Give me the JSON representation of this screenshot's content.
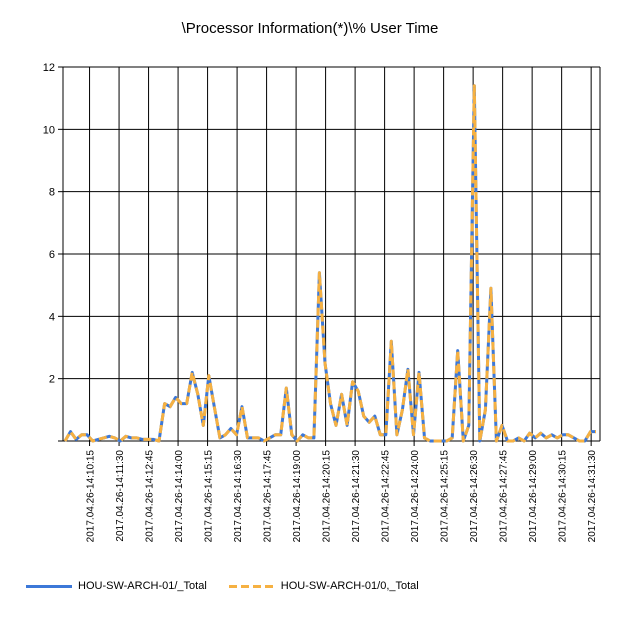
{
  "chart_data": {
    "type": "line",
    "title": "\\Processor Information(*)\\% User Time",
    "xlabel": "",
    "ylabel": "",
    "ylim": [
      0,
      12
    ],
    "y_ticks": [
      "",
      "2",
      "4",
      "6",
      "8",
      "10",
      "12"
    ],
    "x_tick_labels": [
      "2017.04.26-14:10:15",
      "2017.04.26-14:11:30",
      "2017.04.26-14:12:45",
      "2017.04.26-14:14:00",
      "2017.04.26-14:15:15",
      "2017.04.26-14:16:30",
      "2017.04.26-14:17:45",
      "2017.04.26-14:19:00",
      "2017.04.26-14:20:15",
      "2017.04.26-14:21:30",
      "2017.04.26-14:22:45",
      "2017.04.26-14:24:00",
      "2017.04.26-14:25:15",
      "2017.04.26-14:26:30",
      "2017.04.26-14:27:45",
      "2017.04.26-14:29:00",
      "2017.04.26-14:30:15",
      "2017.04.26-14:31:30"
    ],
    "grid": true,
    "legend_position": "bottom-left",
    "series": [
      {
        "name": "HOU-SW-ARCH-01/_Total",
        "color": "#3c78d8",
        "dashed": false,
        "values": [
          0,
          0.3,
          0.05,
          0.2,
          0.2,
          0,
          0.05,
          0.1,
          0.15,
          0.1,
          0,
          0.15,
          0.1,
          0.1,
          0.05,
          0.05,
          0.05,
          0,
          1.2,
          1.1,
          1.4,
          1.2,
          1.2,
          2.2,
          1.5,
          0.5,
          2.1,
          1.1,
          0.1,
          0.2,
          0.4,
          0.2,
          1.1,
          0.1,
          0.1,
          0.1,
          0,
          0.1,
          0.2,
          0.2,
          1.7,
          0.2,
          0,
          0.2,
          0.1,
          0.1,
          5.4,
          2.5,
          1.2,
          0.5,
          1.5,
          0.5,
          1.9,
          1.6,
          0.8,
          0.6,
          0.8,
          0.2,
          0.2,
          3.2,
          0.2,
          1,
          2.3,
          0.2,
          2.2,
          0.1,
          0,
          0,
          0,
          0,
          0.1,
          2.9,
          0,
          0.5,
          11.4,
          0,
          1,
          4.9,
          0,
          0.5,
          0,
          0,
          0.1,
          0,
          0.25,
          0.1,
          0.25,
          0.1,
          0.2,
          0.1,
          0.2,
          0.2,
          0.1,
          0,
          0,
          0.3,
          0.3
        ]
      },
      {
        "name": "HOU-SW-ARCH-01/0,_Total",
        "color": "#f6b142",
        "dashed": true,
        "values": [
          0,
          0.3,
          0.05,
          0.2,
          0.2,
          0,
          0.05,
          0.1,
          0.15,
          0.1,
          0,
          0.15,
          0.1,
          0.1,
          0.05,
          0.05,
          0.05,
          0,
          1.2,
          1.1,
          1.4,
          1.2,
          1.2,
          2.2,
          1.5,
          0.5,
          2.1,
          1.1,
          0.1,
          0.2,
          0.4,
          0.2,
          1.1,
          0.1,
          0.1,
          0.1,
          0,
          0.1,
          0.2,
          0.2,
          1.7,
          0.2,
          0,
          0.2,
          0.1,
          0.1,
          5.4,
          2.5,
          1.2,
          0.5,
          1.5,
          0.5,
          1.9,
          1.6,
          0.8,
          0.6,
          0.8,
          0.2,
          0.2,
          3.2,
          0.2,
          1,
          2.3,
          0.2,
          2.2,
          0.1,
          0,
          0,
          0,
          0,
          0.1,
          2.9,
          0,
          0.5,
          11.4,
          0,
          1,
          4.9,
          0,
          0.5,
          0,
          0,
          0.1,
          0,
          0.25,
          0.1,
          0.25,
          0.1,
          0.2,
          0.1,
          0.2,
          0.2,
          0.1,
          0,
          0,
          0.3,
          0.3
        ]
      }
    ]
  }
}
